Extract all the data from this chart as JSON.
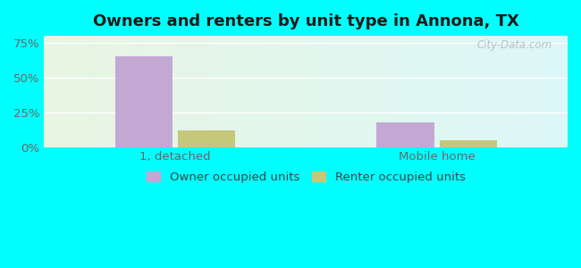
{
  "title": "Owners and renters by unit type in Annona, TX",
  "categories": [
    "1, detached",
    "Mobile home"
  ],
  "owner_values": [
    65.0,
    18.0
  ],
  "renter_values": [
    12.0,
    5.0
  ],
  "owner_color": "#c4a8d4",
  "renter_color": "#c5c87a",
  "bar_width": 0.22,
  "ylim": [
    0,
    80
  ],
  "yticks": [
    0,
    25,
    50,
    75
  ],
  "ytick_labels": [
    "0%",
    "25%",
    "50%",
    "75%"
  ],
  "legend_owner": "Owner occupied units",
  "legend_renter": "Renter occupied units",
  "title_fontsize": 13,
  "tick_fontsize": 9.5,
  "legend_fontsize": 9.5,
  "outer_bg": "#00ffff",
  "watermark_text": "City-Data.com"
}
